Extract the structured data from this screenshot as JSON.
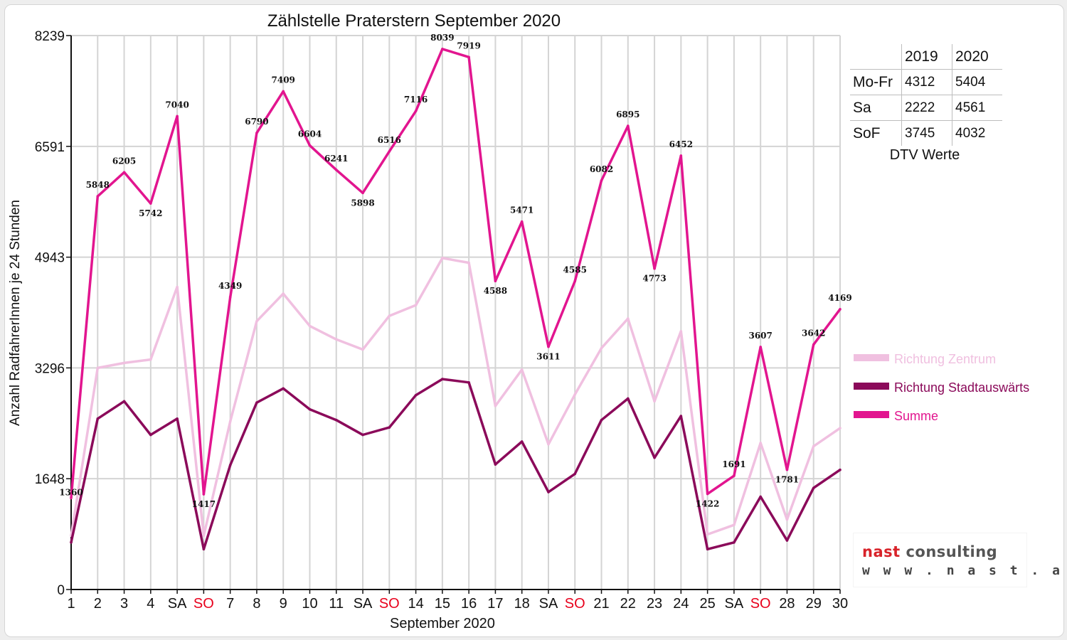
{
  "chart_data": {
    "type": "line",
    "title": "Zählstelle Praterstern September 2020",
    "xlabel": "September 2020",
    "ylabel": "Anzahl RadfahrerInnen je 24 Stunden",
    "x_tick_labels": [
      "1",
      "2",
      "3",
      "4",
      "SA",
      "SO",
      "7",
      "8",
      "9",
      "10",
      "11",
      "SA",
      "SO",
      "14",
      "15",
      "16",
      "17",
      "18",
      "SA",
      "SO",
      "21",
      "22",
      "23",
      "24",
      "25",
      "SA",
      "SO",
      "28",
      "29",
      "30"
    ],
    "weekend_label_color": "#e8001c",
    "ylim": [
      0,
      8239
    ],
    "y_ticks": [
      0,
      1648,
      3296,
      4943,
      6591,
      8239
    ],
    "grid": true,
    "legend_position": "right",
    "series": [
      {
        "name": "Richtung Zentrum",
        "color": "#f0c0e0",
        "values": [
          800,
          3296,
          3370,
          3420,
          4500,
          800,
          2500,
          3990,
          4400,
          3920,
          3720,
          3570,
          4070,
          4230,
          4930,
          4860,
          2730,
          3270,
          2160,
          2900,
          3590,
          4030,
          2800,
          3840,
          820,
          960,
          2180,
          1040,
          2130,
          2400
        ]
      },
      {
        "name": "Richtung Stadtauswärts",
        "color": "#8b0a5a",
        "values": [
          700,
          2540,
          2800,
          2300,
          2540,
          600,
          1850,
          2780,
          2990,
          2680,
          2520,
          2300,
          2410,
          2890,
          3130,
          3080,
          1860,
          2200,
          1450,
          1720,
          2520,
          2840,
          1960,
          2580,
          600,
          700,
          1380,
          730,
          1510,
          1780
        ]
      },
      {
        "name": "Summe",
        "color": "#e2158f",
        "values": [
          1360,
          5848,
          6205,
          5742,
          7040,
          1417,
          4349,
          6790,
          7409,
          6604,
          6241,
          5898,
          6516,
          7116,
          8039,
          7919,
          4588,
          5471,
          3611,
          4585,
          6082,
          6895,
          4773,
          6452,
          1422,
          1691,
          3607,
          1781,
          3642,
          4169
        ],
        "data_labels": [
          "1360",
          "5848",
          "6205",
          "5742",
          "7040",
          "1417",
          "4349",
          "6790",
          "7409",
          "6604",
          "6241",
          "5898",
          "6516",
          "7116",
          "8039",
          "7919",
          "4588",
          "5471",
          "3611",
          "4585",
          "6082",
          "6895",
          "4773",
          "6452",
          "1422",
          "1691",
          "3607",
          "1781",
          "3642",
          "4169"
        ]
      }
    ]
  },
  "dtv_table": {
    "headers": [
      "",
      "2019",
      "2020"
    ],
    "rows": [
      {
        "label": "Mo-Fr",
        "v2019": "4312",
        "v2020": "5404"
      },
      {
        "label": "Sa",
        "v2019": "2222",
        "v2020": "4561"
      },
      {
        "label": "SoF",
        "v2019": "3745",
        "v2020": "4032"
      }
    ],
    "caption": "DTV Werte"
  },
  "logo": {
    "word1": "nast",
    "word2": "consulting",
    "url": "w w w . n a s t . a t",
    "colors": {
      "word1": "#d8232a",
      "word2": "#555555"
    }
  }
}
